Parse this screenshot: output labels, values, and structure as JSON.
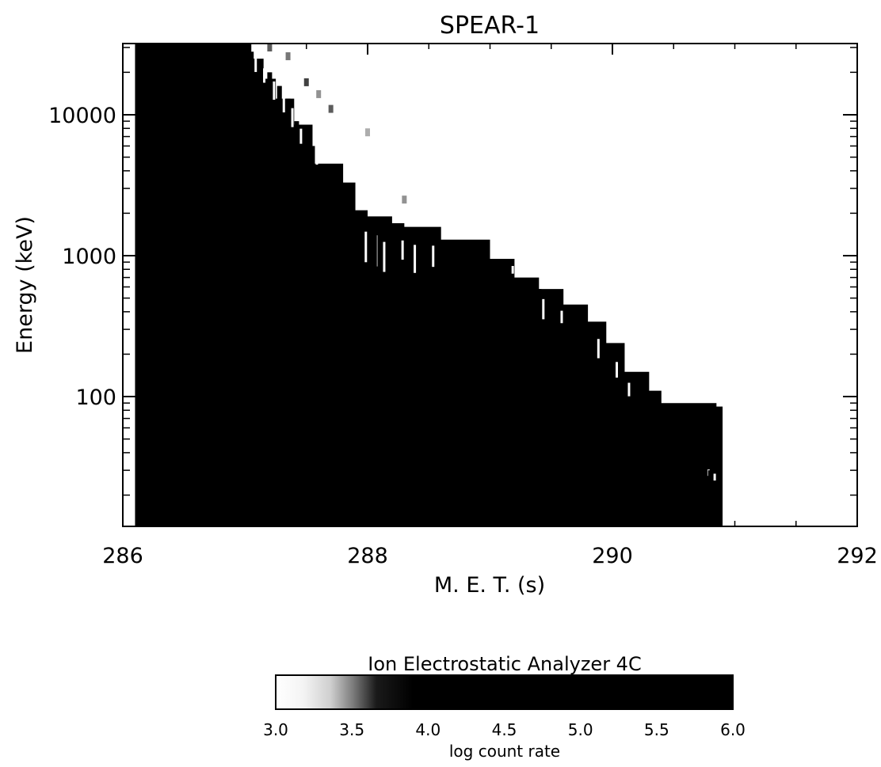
{
  "chart_data": {
    "type": "heatmap",
    "title": "SPEAR-1",
    "xlabel": "M. E. T. (s)",
    "ylabel": "Energy (keV)",
    "x_range": [
      286,
      292
    ],
    "y_range": [
      12,
      32000
    ],
    "y_scale": "log",
    "x_ticks": [
      286,
      288,
      290,
      292
    ],
    "x_tick_labels": [
      "286",
      "288",
      "290",
      "292"
    ],
    "y_ticks": [
      100,
      1000,
      10000
    ],
    "y_tick_labels": [
      "100",
      "1000",
      "10000"
    ],
    "colorbar": {
      "title": "Ion Electrostatic Analyzer 4C",
      "label": "log count rate",
      "range": [
        3.0,
        6.0
      ],
      "ticks": [
        "3.0",
        "3.5",
        "4.0",
        "4.5",
        "5.0",
        "5.5",
        "6.0"
      ],
      "colormap": "grayscale-reversed",
      "placement": "below"
    },
    "edge_profile": {
      "description_points": "upper energy edge of region with log count rate >= 6.0 vs time",
      "x": [
        286.1,
        286.95,
        287.05,
        287.15,
        287.25,
        287.4,
        287.55,
        287.8,
        287.9,
        288.0,
        288.2,
        288.3,
        288.6,
        289.0,
        289.2,
        289.4,
        289.6,
        289.8,
        289.95,
        290.1,
        290.3,
        290.4,
        290.85,
        290.9
      ],
      "y": [
        32000,
        32000,
        25000,
        18000,
        13000,
        8500,
        4500,
        3300,
        2100,
        1900,
        1700,
        1600,
        1300,
        950,
        700,
        580,
        450,
        340,
        240,
        150,
        110,
        90,
        85,
        12
      ]
    },
    "streaks": {
      "description": "vertical partially-saturated streaks near the edge",
      "x": [
        287.05,
        287.12,
        287.2,
        287.28,
        287.35,
        287.42,
        287.55,
        287.95,
        288.05,
        288.1,
        288.25,
        288.35,
        288.5,
        289.15,
        289.4,
        289.55,
        289.85,
        290.0,
        290.1,
        290.75,
        290.8
      ],
      "y_low": [
        18000,
        15000,
        11000,
        9000,
        7000,
        5500,
        4000,
        700,
        650,
        600,
        800,
        600,
        700,
        700,
        300,
        300,
        160,
        120,
        90,
        26,
        24
      ],
      "y_high": [
        28000,
        24000,
        20000,
        16000,
        13000,
        9000,
        6000,
        1900,
        1800,
        1600,
        1500,
        1500,
        1400,
        900,
        580,
        450,
        300,
        200,
        140,
        32,
        30
      ]
    },
    "faint_points": {
      "description": "faint low-count pixels above the saturated edge",
      "x": [
        287.2,
        287.35,
        287.5,
        287.6,
        287.7,
        288.0,
        288.3
      ],
      "y": [
        30000,
        26000,
        17000,
        14000,
        11000,
        7500,
        2500
      ],
      "value": [
        3.6,
        3.5,
        3.7,
        3.4,
        3.6,
        3.3,
        3.4
      ]
    }
  },
  "colors": {
    "background": "#ffffff",
    "saturated": "#000000",
    "axis": "#000000"
  }
}
